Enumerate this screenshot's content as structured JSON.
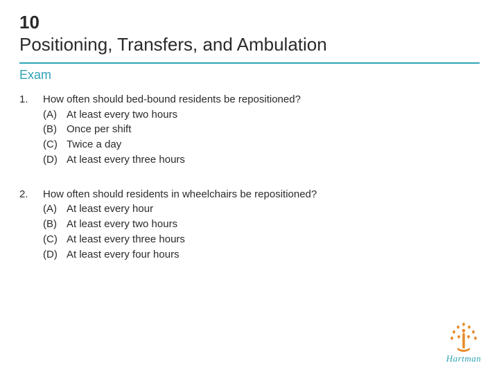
{
  "chapter": {
    "number": "10",
    "title": "Positioning, Transfers, and Ambulation"
  },
  "section_label": "Exam",
  "colors": {
    "accent": "#2ea3b7",
    "logo_orange": "#e98a2b",
    "text": "#2a2a2a",
    "background": "#ffffff"
  },
  "typography": {
    "chapter_fontsize": 26,
    "section_fontsize": 18,
    "body_fontsize": 15
  },
  "questions": [
    {
      "number": "1.",
      "stem": "How often should bed-bound residents be repositioned?",
      "options": [
        {
          "letter": "(A)",
          "text": "At least every two hours"
        },
        {
          "letter": "(B)",
          "text": "Once per shift"
        },
        {
          "letter": "(C)",
          "text": "Twice a day"
        },
        {
          "letter": "(D)",
          "text": "At least every three hours"
        }
      ]
    },
    {
      "number": "2.",
      "stem": "How often should residents in wheelchairs be repositioned?",
      "options": [
        {
          "letter": "(A)",
          "text": "At least every hour"
        },
        {
          "letter": "(B)",
          "text": "At least every two hours"
        },
        {
          "letter": "(C)",
          "text": "At least every three hours"
        },
        {
          "letter": "(D)",
          "text": "At least every four hours"
        }
      ]
    }
  ],
  "logo": {
    "text": "Hartman",
    "icon_name": "tree-hearts-icon"
  }
}
